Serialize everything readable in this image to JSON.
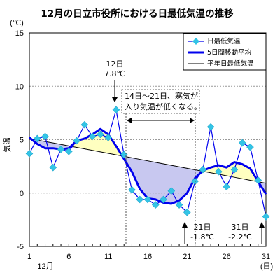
{
  "chart_data": {
    "type": "line",
    "title": "12月の日立市役所における日最低気温の推移",
    "unit": "(℃)",
    "ylabel": "気温",
    "xlabel": "12月",
    "xunit": "(日)",
    "ylim": [
      -5,
      15
    ],
    "xlim": [
      1,
      31
    ],
    "yticks": [
      "15",
      "10",
      "5",
      "0",
      "-5"
    ],
    "xticks": [
      "1",
      "6",
      "11",
      "16",
      "21",
      "26",
      "31"
    ],
    "x": [
      1,
      2,
      3,
      4,
      5,
      6,
      7,
      8,
      9,
      10,
      11,
      12,
      13,
      14,
      15,
      16,
      17,
      18,
      19,
      20,
      21,
      22,
      23,
      24,
      25,
      26,
      27,
      28,
      29,
      30,
      31
    ],
    "series": [
      {
        "name": "日最低気温",
        "color": "#33c4e6",
        "values": [
          3.7,
          5.1,
          5.3,
          2.4,
          4.1,
          3.9,
          4.9,
          6.4,
          5.3,
          5.5,
          5.2,
          7.8,
          3.6,
          0.3,
          -0.6,
          -0.6,
          -1.1,
          -0.6,
          0.2,
          -1.1,
          -1.8,
          1.1,
          2.2,
          6.2,
          2.0,
          0.6,
          2.2,
          4.7,
          4.3,
          1.2,
          -2.2
        ]
      },
      {
        "name": "5日間移動平均",
        "color": "#0000ee",
        "values": [
          5.2,
          4.6,
          4.2,
          4.2,
          4.1,
          4.2,
          4.9,
          5.1,
          5.5,
          6.0,
          5.5,
          4.4,
          3.2,
          2.0,
          0.4,
          -0.5,
          -0.6,
          -0.9,
          -1.0,
          -0.7,
          0.0,
          1.4,
          2.1,
          2.4,
          2.6,
          2.4,
          2.9,
          2.7,
          2.3,
          1.1,
          -0.1
        ]
      },
      {
        "name": "平年日最低気温",
        "color": "#000000",
        "values": [
          5.1,
          4.97,
          4.83,
          4.7,
          4.56,
          4.42,
          4.28,
          4.14,
          4.0,
          3.86,
          3.72,
          3.58,
          3.44,
          3.3,
          3.16,
          3.02,
          2.88,
          2.74,
          2.6,
          2.46,
          2.32,
          2.18,
          2.04,
          1.9,
          1.76,
          1.62,
          1.48,
          1.34,
          1.2,
          1.06,
          0.92
        ]
      }
    ],
    "legend_position": "top-right",
    "fill_colors": {
      "above": "#ffffc0",
      "below": "#c8c8f0"
    },
    "annotations": {
      "peak": {
        "day": "12日",
        "value": "7.8℃"
      },
      "cold_box": {
        "line1": "14日～21日、寒気が",
        "line2": "入り気温が低くなる。"
      },
      "low1": {
        "day": "21日",
        "value": "-1.8℃"
      },
      "low2": {
        "day": "31日",
        "value": "-2.2℃"
      }
    }
  }
}
